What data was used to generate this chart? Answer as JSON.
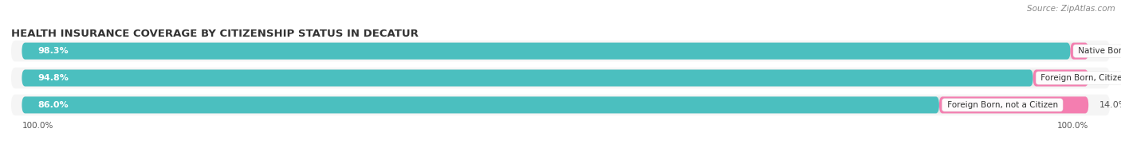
{
  "title": "HEALTH INSURANCE COVERAGE BY CITIZENSHIP STATUS IN DECATUR",
  "source": "Source: ZipAtlas.com",
  "categories": [
    "Native Born",
    "Foreign Born, Citizen",
    "Foreign Born, not a Citizen"
  ],
  "with_coverage": [
    98.3,
    94.8,
    86.0
  ],
  "without_coverage": [
    1.7,
    5.2,
    14.0
  ],
  "color_with": "#4BBFBF",
  "color_without": "#F47EB0",
  "color_bg_bar": "#E8E8E8",
  "color_row_bg": "#F5F5F5",
  "axis_label_left": "100.0%",
  "axis_label_right": "100.0%",
  "title_fontsize": 9.5,
  "source_fontsize": 7.5,
  "bar_label_fontsize": 8.0,
  "pct_fontsize": 8.0,
  "cat_label_fontsize": 7.5,
  "legend_fontsize": 8.0,
  "figsize": [
    14.06,
    1.96
  ],
  "dpi": 100
}
